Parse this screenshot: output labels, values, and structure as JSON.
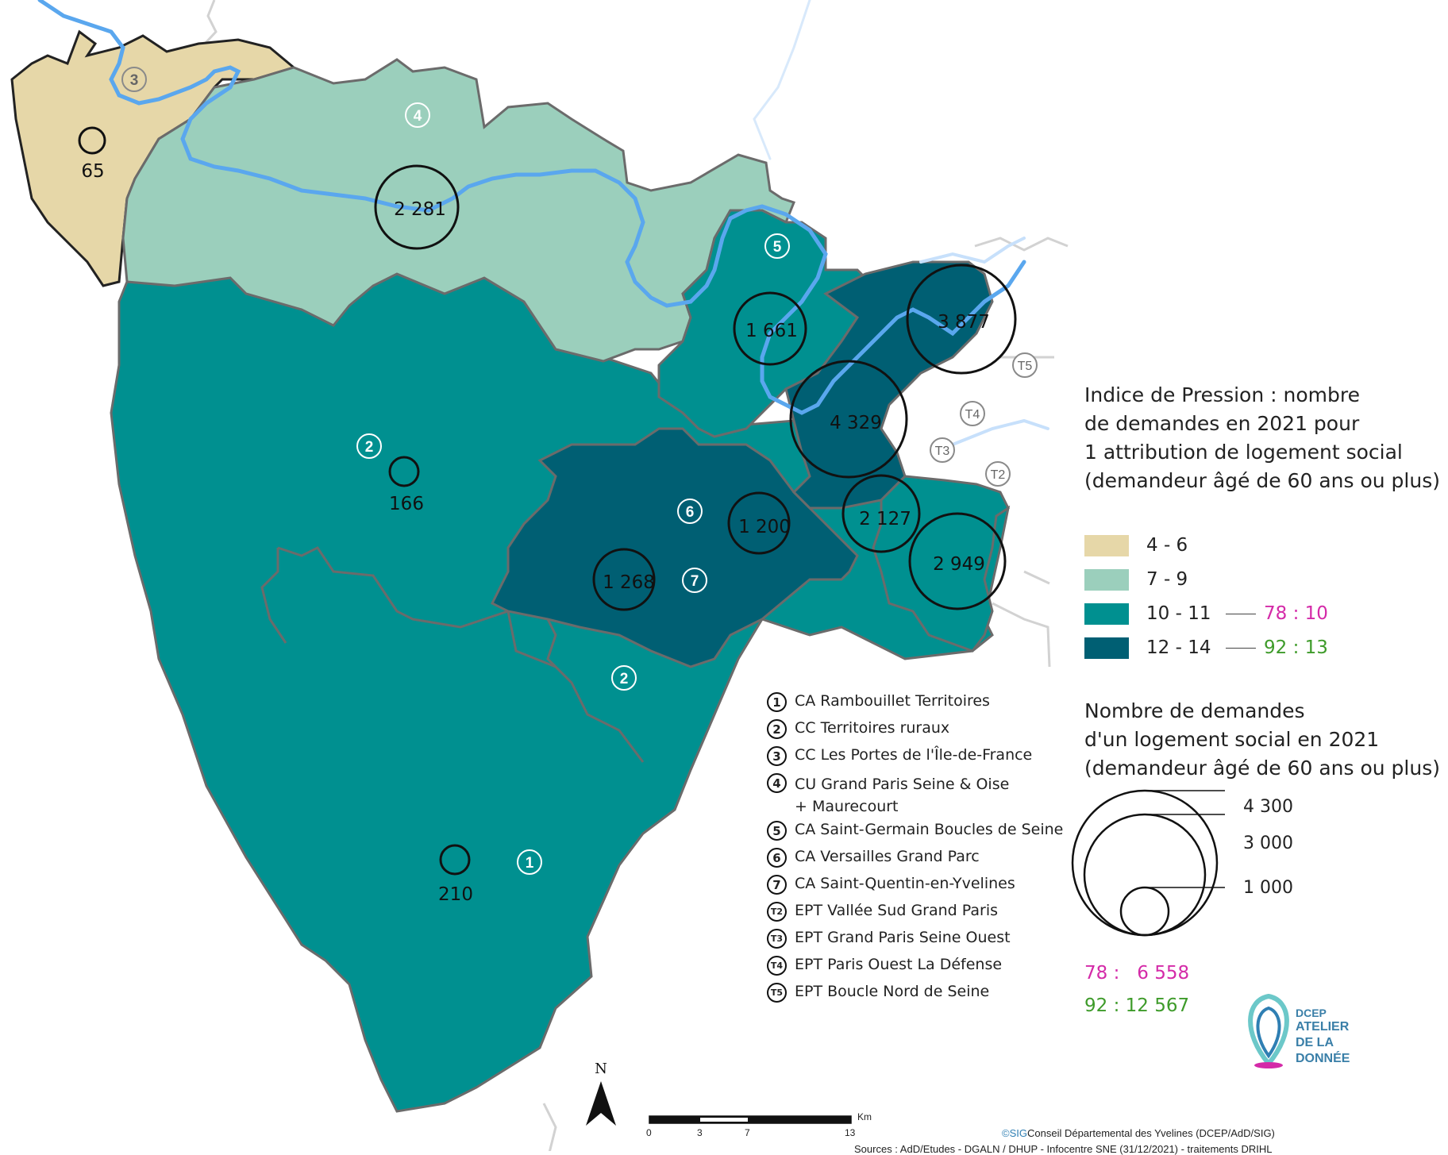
{
  "colors": {
    "class_4_6": "#e6d7a8",
    "class_7_9": "#9bcfbc",
    "class_10_11": "#009090",
    "class_12_14": "#005f73",
    "river": "#5aa7ee",
    "border": "#6b6b6b",
    "pink": "#d42aa8",
    "green": "#3e9b2a"
  },
  "map_labels": {
    "territory_numbers": {
      "t3": "3",
      "t4": "4",
      "t5": "5",
      "t2a": "2",
      "t6": "6",
      "t7": "7",
      "t2b": "2",
      "t1": "1",
      "T5": "T5",
      "T4": "T4",
      "T3": "T3",
      "T2": "T2"
    },
    "counts": {
      "c65": "65",
      "c2281": "2 281",
      "c1661": "1 661",
      "c3877": "3 877",
      "c4329": "4 329",
      "c166": "166",
      "c1200": "1 200",
      "c1268": "1 268",
      "c2127": "2 127",
      "c2949": "2 949",
      "c210": "210"
    },
    "north": "N"
  },
  "legend_pressure": {
    "title": "Indice de Pression : nombre\nde demandes en 2021 pour\n1 attribution de logement social\n(demandeur âgé de 60 ans ou plus)",
    "classes": [
      {
        "label": "4 - 6"
      },
      {
        "label": "7 - 9"
      },
      {
        "label": "10 - 11",
        "comparison": "78 : 10"
      },
      {
        "label": "12 - 14",
        "comparison": "92 : 13"
      }
    ]
  },
  "legend_size": {
    "title": "Nombre de demandes\nd'un logement social en 2021\n(demandeur âgé de 60 ans ou plus)",
    "references": [
      "4 300",
      "3 000",
      "1 000"
    ],
    "dept78": "78 :   6 558",
    "dept92": "92 : 12 567"
  },
  "territories_list": [
    {
      "num": "1",
      "name": "CA Rambouillet Territoires"
    },
    {
      "num": "2",
      "name": "CC Territoires ruraux"
    },
    {
      "num": "3",
      "name": "CC Les Portes de l'Île-de-France"
    },
    {
      "num": "4",
      "name": "CU Grand Paris Seine & Oise\n+ Maurecourt"
    },
    {
      "num": "5",
      "name": "CA Saint-Germain Boucles de Seine"
    },
    {
      "num": "6",
      "name": "CA Versailles Grand Parc"
    },
    {
      "num": "7",
      "name": "CA Saint-Quentin-en-Yvelines"
    },
    {
      "num": "T2",
      "name": "EPT Vallée Sud Grand Paris"
    },
    {
      "num": "T3",
      "name": "EPT Grand Paris Seine Ouest"
    },
    {
      "num": "T4",
      "name": "EPT Paris Ouest La Défense"
    },
    {
      "num": "T5",
      "name": "EPT Boucle Nord de Seine"
    }
  ],
  "scale_bar": {
    "ticks": [
      "0",
      "3",
      "7",
      "13"
    ],
    "unit": "Km"
  },
  "logo": {
    "line1": "DCEP",
    "line2": "ATELIER",
    "line3": "DE LA",
    "line4": "DONNÉE"
  },
  "credit": "Conseil Départemental des Yvelines (DCEP/AdD/SIG)",
  "credit_prefix": "©SIG",
  "sources": "Sources : AdD/Etudes - DGALN / DHUP - Infocentre SNE (31/12/2021) - traitements DRIHL"
}
